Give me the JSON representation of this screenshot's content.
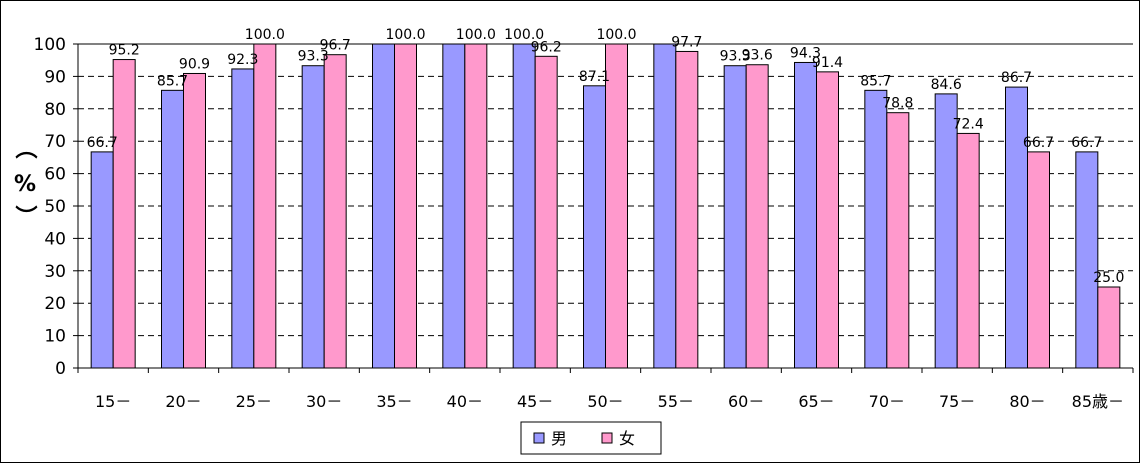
{
  "chart_data": {
    "type": "bar",
    "title": "",
    "ylabel_parts": [
      "（",
      "%",
      "）"
    ],
    "ylim": [
      0,
      100
    ],
    "yticks": [
      0,
      10,
      20,
      30,
      40,
      50,
      60,
      70,
      80,
      90,
      100
    ],
    "grid": true,
    "legend_position": "bottom",
    "categories": [
      "15－",
      "20－",
      "25－",
      "30－",
      "35－",
      "40－",
      "45－",
      "50－",
      "55－",
      "60－",
      "65－",
      "70－",
      "75－",
      "80－",
      "85歳－"
    ],
    "series": [
      {
        "name": "男",
        "color": "#9999ff",
        "values": [
          66.7,
          85.7,
          92.3,
          93.3,
          100.0,
          100.0,
          100.0,
          87.1,
          100.0,
          93.3,
          94.3,
          85.7,
          84.6,
          86.7,
          66.7
        ],
        "labels": [
          "66.7",
          "85.7",
          "92.3",
          "93.3",
          "",
          "",
          "100.0",
          "87.1",
          "",
          "93.3",
          "94.3",
          "85.7",
          "84.6",
          "86.7",
          "66.7"
        ]
      },
      {
        "name": "女",
        "color": "#ff99cc",
        "values": [
          95.2,
          90.9,
          100.0,
          96.7,
          100.0,
          100.0,
          96.2,
          100.0,
          97.7,
          93.6,
          91.4,
          78.8,
          72.4,
          66.7,
          25.0
        ],
        "labels": [
          "95.2",
          "90.9",
          "100.0",
          "96.7",
          "100.0",
          "100.0",
          "96.2",
          "100.0",
          "97.7",
          "93.6",
          "91.4",
          "78.8",
          "72.4",
          "66.7",
          "25.0"
        ]
      }
    ]
  }
}
